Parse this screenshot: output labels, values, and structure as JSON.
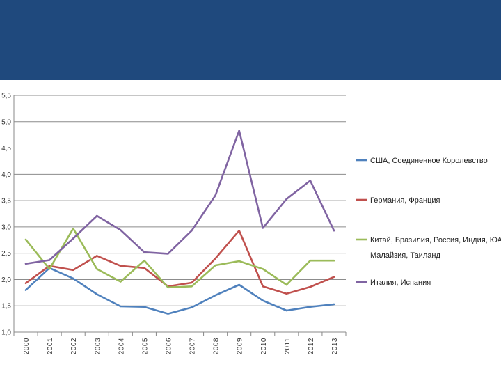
{
  "chart_data": {
    "type": "line",
    "title": "",
    "xlabel": "",
    "ylabel": "",
    "ylim": [
      1.0,
      5.5
    ],
    "ytick_step": 0.5,
    "y_tick_labels": [
      "1,0",
      "1,5",
      "2,0",
      "2,5",
      "3,0",
      "3,5",
      "4,0",
      "4,5",
      "5,0",
      "5,5"
    ],
    "categories": [
      "2000",
      "2001",
      "2002",
      "2003",
      "2004",
      "2005",
      "2006",
      "2007",
      "2008",
      "2009",
      "2010",
      "2011",
      "2012",
      "2013"
    ],
    "grid": true,
    "legend_position": "right",
    "series": [
      {
        "name": "США, Соединенное Королевство",
        "legend_lines": [
          "США, Соединенное Королевство"
        ],
        "color": "#4f81bd",
        "values": [
          1.8,
          2.22,
          2.02,
          1.72,
          1.49,
          1.48,
          1.35,
          1.47,
          1.7,
          1.9,
          1.6,
          1.41,
          1.48,
          1.53
        ]
      },
      {
        "name": "Германия, Франция",
        "legend_lines": [
          "Германия, Франция"
        ],
        "color": "#c0504d",
        "values": [
          1.93,
          2.26,
          2.18,
          2.45,
          2.26,
          2.22,
          1.87,
          1.94,
          2.4,
          2.93,
          1.87,
          1.73,
          1.86,
          2.05
        ]
      },
      {
        "name": "Китай, Бразилия, Россия, Индия, ЮАР, Турция, Малайзия, Таиланд",
        "legend_lines": [
          "Китай, Бразилия, Россия, Индия, ЮАР, Турция,",
          "Малайзия, Таиланд"
        ],
        "color": "#9bbb59",
        "values": [
          2.76,
          2.2,
          2.97,
          2.2,
          1.96,
          2.36,
          1.85,
          1.87,
          2.27,
          2.35,
          2.2,
          1.9,
          2.36,
          2.36
        ]
      },
      {
        "name": "Италия, Испания",
        "legend_lines": [
          "Италия, Испания"
        ],
        "color": "#8064a2",
        "values": [
          2.3,
          2.37,
          2.78,
          3.21,
          2.94,
          2.52,
          2.49,
          2.93,
          3.6,
          4.83,
          2.98,
          3.53,
          3.88,
          2.93
        ]
      }
    ]
  }
}
